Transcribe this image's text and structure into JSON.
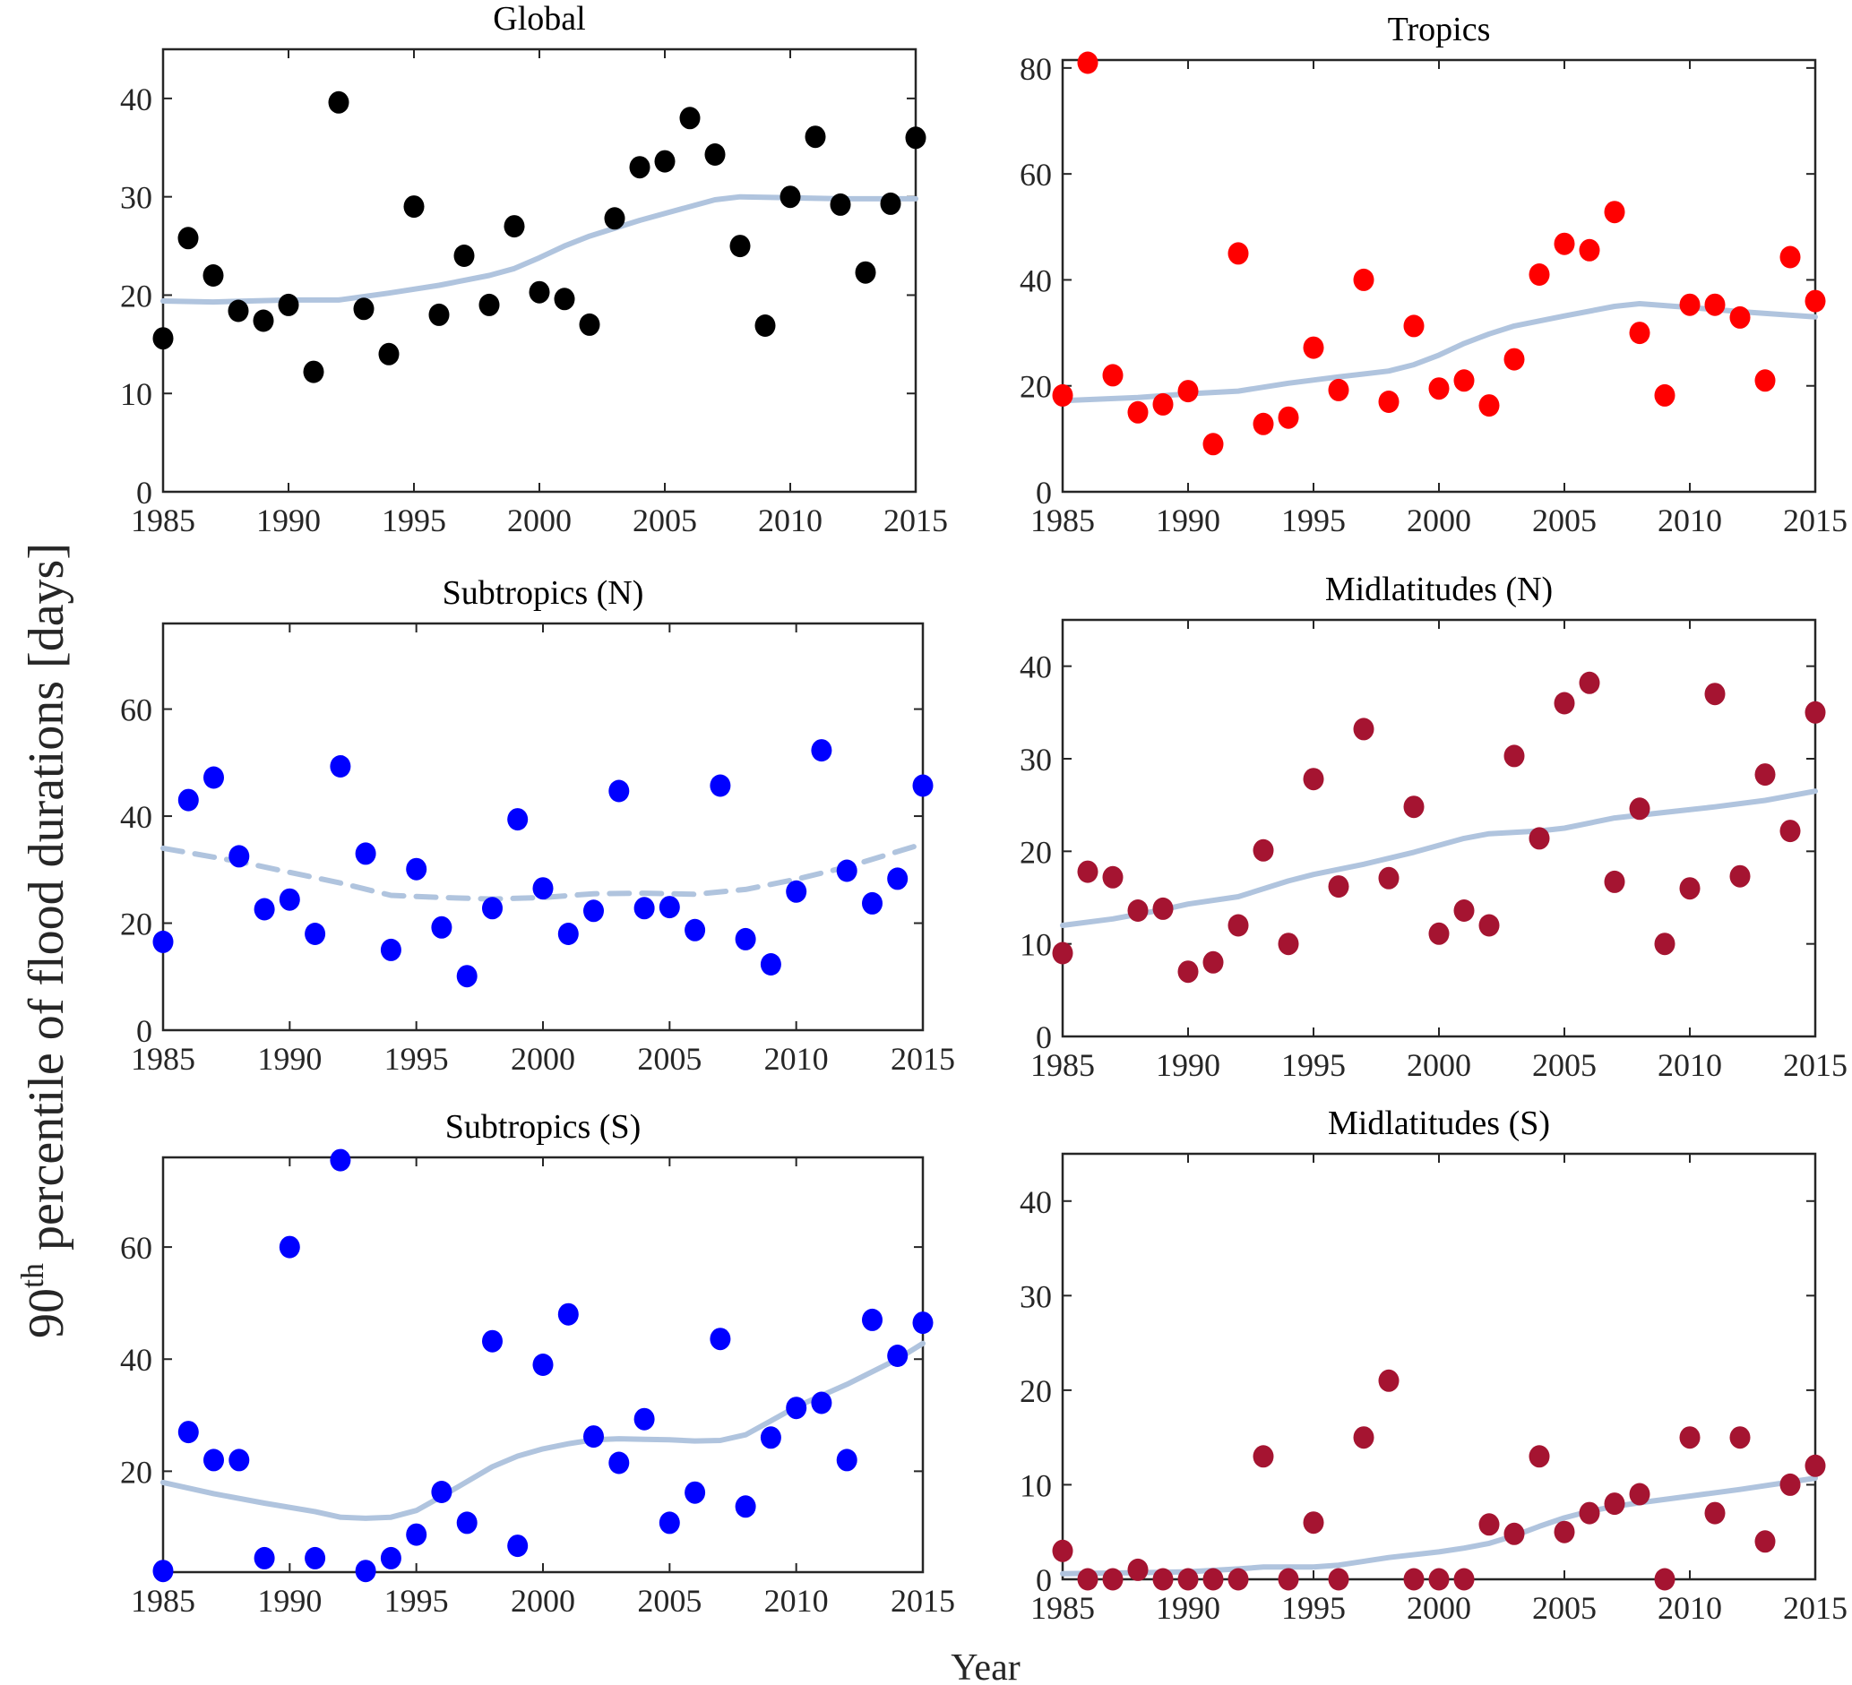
{
  "figure": {
    "ylabel_main": "90",
    "ylabel_sup": "th",
    "ylabel_rest": " percentile of flood  durations  [days]",
    "xlabel": "Year",
    "trend_color": "#B0C4DE"
  },
  "chart_data": [
    {
      "type": "scatter",
      "title": "Global",
      "color": "#000000",
      "xlim": [
        1985,
        2015
      ],
      "ylim": [
        0,
        45
      ],
      "yticks": [
        0,
        10,
        20,
        30,
        40
      ],
      "xticks": [
        1985,
        1990,
        1995,
        2000,
        2005,
        2010,
        2015
      ],
      "x": [
        1985,
        1986,
        1987,
        1988,
        1989,
        1990,
        1991,
        1992,
        1993,
        1994,
        1995,
        1996,
        1997,
        1998,
        1999,
        2000,
        2001,
        2002,
        2003,
        2004,
        2005,
        2006,
        2007,
        2008,
        2009,
        2010,
        2011,
        2012,
        2013,
        2014,
        2015
      ],
      "values": [
        15.6,
        25.8,
        22,
        18.4,
        17.4,
        19,
        12.2,
        39.6,
        18.6,
        14,
        29,
        18,
        24,
        19,
        27,
        20.3,
        19.6,
        17,
        27.8,
        33,
        33.6,
        38,
        34.3,
        25,
        16.9,
        30,
        36.1,
        29.2,
        22.3,
        29.3,
        36
      ],
      "trend": {
        "style": "solid",
        "x": [
          1985,
          1987,
          1990,
          1992,
          1994,
          1996,
          1998,
          1999,
          2000,
          2001,
          2002,
          2004,
          2006,
          2007,
          2008,
          2010,
          2012,
          2015
        ],
        "values": [
          19.4,
          19.3,
          19.5,
          19.5,
          20.2,
          21,
          22,
          22.7,
          23.8,
          25,
          26,
          27.6,
          29,
          29.7,
          30,
          29.9,
          29.8,
          29.8
        ]
      }
    },
    {
      "type": "scatter",
      "title": "Tropics",
      "color": "#FF0000",
      "xlim": [
        1985,
        2015
      ],
      "ylim": [
        0,
        81.5
      ],
      "yticks": [
        0,
        20,
        40,
        60,
        80
      ],
      "xticks": [
        1985,
        1990,
        1995,
        2000,
        2005,
        2010,
        2015
      ],
      "x": [
        1985,
        1986,
        1987,
        1988,
        1989,
        1990,
        1991,
        1992,
        1993,
        1994,
        1995,
        1996,
        1997,
        1998,
        1999,
        2000,
        2001,
        2002,
        2003,
        2004,
        2005,
        2006,
        2007,
        2008,
        2009,
        2010,
        2011,
        2012,
        2013,
        2014,
        2015
      ],
      "values": [
        18.2,
        81,
        22,
        15,
        16.5,
        19,
        9,
        45,
        12.8,
        14,
        27.2,
        19.2,
        40,
        17,
        31.3,
        19.5,
        21,
        16.3,
        25,
        41,
        46.8,
        45.6,
        52.8,
        30,
        18.2,
        35.3,
        35.3,
        32.9,
        21,
        44.3,
        36
      ],
      "trend": {
        "style": "solid",
        "x": [
          1985,
          1988,
          1990,
          1992,
          1994,
          1996,
          1998,
          1999,
          2000,
          2001,
          2002,
          2003,
          2005,
          2007,
          2008,
          2010,
          2012,
          2015
        ],
        "values": [
          17.2,
          17.8,
          18.5,
          19,
          20.5,
          21.7,
          22.8,
          24,
          25.8,
          28,
          29.8,
          31.3,
          33.2,
          35,
          35.5,
          34.8,
          34,
          33
        ]
      }
    },
    {
      "type": "scatter",
      "title": "Subtropics (N)",
      "color": "#0000FF",
      "xlim": [
        1985,
        2015
      ],
      "ylim": [
        0,
        76
      ],
      "yticks": [
        0,
        20,
        40,
        60
      ],
      "xticks": [
        1985,
        1990,
        1995,
        2000,
        2005,
        2010,
        2015
      ],
      "x": [
        1985,
        1986,
        1987,
        1988,
        1989,
        1990,
        1991,
        1992,
        1993,
        1994,
        1995,
        1996,
        1997,
        1998,
        1999,
        2000,
        2001,
        2002,
        2003,
        2004,
        2005,
        2006,
        2007,
        2008,
        2009,
        2010,
        2011,
        2012,
        2013,
        2014,
        2015
      ],
      "values": [
        16.5,
        43,
        47.2,
        32.5,
        22.6,
        24.4,
        18,
        49.3,
        33,
        15,
        30.1,
        19.2,
        10.1,
        22.8,
        39.4,
        26.5,
        18,
        22.3,
        44.7,
        22.8,
        23,
        18.7,
        45.7,
        17,
        12.3,
        25.9,
        52.3,
        29.8,
        23.7,
        28.3,
        45.7
      ],
      "trend": {
        "style": "dashed",
        "x": [
          1985,
          1988,
          1990,
          1992,
          1994,
          1996,
          1998,
          2000,
          2002,
          2004,
          2006,
          2008,
          2010,
          2012,
          2015
        ],
        "values": [
          34,
          31.5,
          29.5,
          27.5,
          25.2,
          24.8,
          24.5,
          24.8,
          25.5,
          25.6,
          25.4,
          26.3,
          28.2,
          30.5,
          34.8
        ]
      }
    },
    {
      "type": "scatter",
      "title": "Midlatitudes (N)",
      "color": "#A51431",
      "xlim": [
        1985,
        2015
      ],
      "ylim": [
        0,
        45
      ],
      "yticks": [
        0,
        10,
        20,
        30,
        40
      ],
      "xticks": [
        1985,
        1990,
        1995,
        2000,
        2005,
        2010,
        2015
      ],
      "x": [
        1985,
        1986,
        1987,
        1988,
        1989,
        1990,
        1991,
        1992,
        1993,
        1994,
        1995,
        1996,
        1997,
        1998,
        1999,
        2000,
        2001,
        2002,
        2003,
        2004,
        2005,
        2006,
        2007,
        2008,
        2009,
        2010,
        2011,
        2012,
        2013,
        2014,
        2015
      ],
      "values": [
        9,
        17.8,
        17.2,
        13.6,
        13.8,
        7,
        8,
        12,
        20.1,
        10,
        27.8,
        16.2,
        33.2,
        17.1,
        24.8,
        11.1,
        13.6,
        12,
        30.3,
        21.4,
        36,
        38.2,
        16.7,
        24.6,
        10,
        16,
        37,
        17.3,
        28.3,
        22.2,
        35
      ],
      "trend": {
        "style": "solid",
        "x": [
          1985,
          1987,
          1989,
          1990,
          1992,
          1994,
          1995,
          1997,
          1999,
          2001,
          2002,
          2004,
          2005,
          2007,
          2009,
          2011,
          2013,
          2015
        ],
        "values": [
          12,
          12.7,
          13.7,
          14.3,
          15.1,
          16.8,
          17.5,
          18.6,
          19.9,
          21.4,
          21.9,
          22.2,
          22.5,
          23.6,
          24.2,
          24.8,
          25.5,
          26.5
        ]
      }
    },
    {
      "type": "scatter",
      "title": "Subtropics (S)",
      "color": "#0000FF",
      "xlim": [
        1985,
        2015
      ],
      "ylim": [
        2,
        76
      ],
      "yticks": [
        20,
        40,
        60
      ],
      "xticks": [
        1985,
        1990,
        1995,
        2000,
        2005,
        2010,
        2015
      ],
      "x": [
        1985,
        1986,
        1987,
        1988,
        1989,
        1990,
        1991,
        1992,
        1993,
        1994,
        1995,
        1996,
        1997,
        1998,
        1999,
        2000,
        2001,
        2002,
        2003,
        2004,
        2005,
        2006,
        2007,
        2008,
        2009,
        2010,
        2011,
        2012,
        2013,
        2014,
        2015
      ],
      "values": [
        2.2,
        27,
        22,
        22,
        4.5,
        60,
        4.5,
        75.5,
        2.2,
        4.5,
        8.7,
        16.3,
        10.8,
        43.2,
        6.7,
        39,
        48,
        26.2,
        21.5,
        29.3,
        10.8,
        16.2,
        43.6,
        13.7,
        26,
        31.3,
        32.2,
        22,
        47,
        40.6,
        46.5
      ],
      "trend": {
        "style": "solid",
        "x": [
          1985,
          1987,
          1989,
          1991,
          1992,
          1993,
          1994,
          1995,
          1996,
          1998,
          1999,
          2000,
          2001,
          2002,
          2003,
          2004,
          2005,
          2006,
          2007,
          2008,
          2009,
          2010,
          2012,
          2014,
          2015
        ],
        "values": [
          18,
          16,
          14.3,
          12.8,
          11.8,
          11.6,
          11.8,
          13,
          15.5,
          20.8,
          22.7,
          24,
          24.9,
          25.6,
          25.8,
          25.7,
          25.6,
          25.4,
          25.5,
          26.5,
          29,
          31.5,
          35.5,
          40,
          42.8
        ]
      }
    },
    {
      "type": "scatter",
      "title": "Midlatitudes (S)",
      "color": "#A51431",
      "xlim": [
        1985,
        2015
      ],
      "ylim": [
        0,
        45
      ],
      "yticks": [
        0,
        10,
        20,
        30,
        40
      ],
      "xticks": [
        1985,
        1990,
        1995,
        2000,
        2005,
        2010,
        2015
      ],
      "x": [
        1985,
        1986,
        1987,
        1988,
        1989,
        1990,
        1991,
        1992,
        1993,
        1994,
        1995,
        1996,
        1997,
        1998,
        1999,
        2000,
        2001,
        2002,
        2003,
        2004,
        2005,
        2006,
        2007,
        2008,
        2009,
        2010,
        2011,
        2012,
        2013,
        2014,
        2015
      ],
      "values": [
        3,
        0,
        0,
        1,
        0,
        0,
        0,
        0,
        13,
        0,
        6,
        0,
        15,
        21,
        0,
        0,
        0,
        5.8,
        4.8,
        13,
        5,
        7,
        8,
        9,
        0,
        15,
        7,
        15,
        4,
        10,
        12
      ],
      "trend": {
        "style": "solid",
        "x": [
          1985,
          1988,
          1990,
          1992,
          1993,
          1995,
          1996,
          1998,
          2000,
          2001,
          2002,
          2003,
          2004,
          2005,
          2006,
          2007,
          2008,
          2010,
          2012,
          2015
        ],
        "values": [
          0.6,
          0.7,
          0.8,
          1.1,
          1.3,
          1.3,
          1.5,
          2.3,
          2.9,
          3.3,
          3.8,
          4.6,
          5.6,
          6.5,
          7.2,
          7.7,
          8.1,
          8.8,
          9.5,
          10.7
        ]
      }
    }
  ]
}
